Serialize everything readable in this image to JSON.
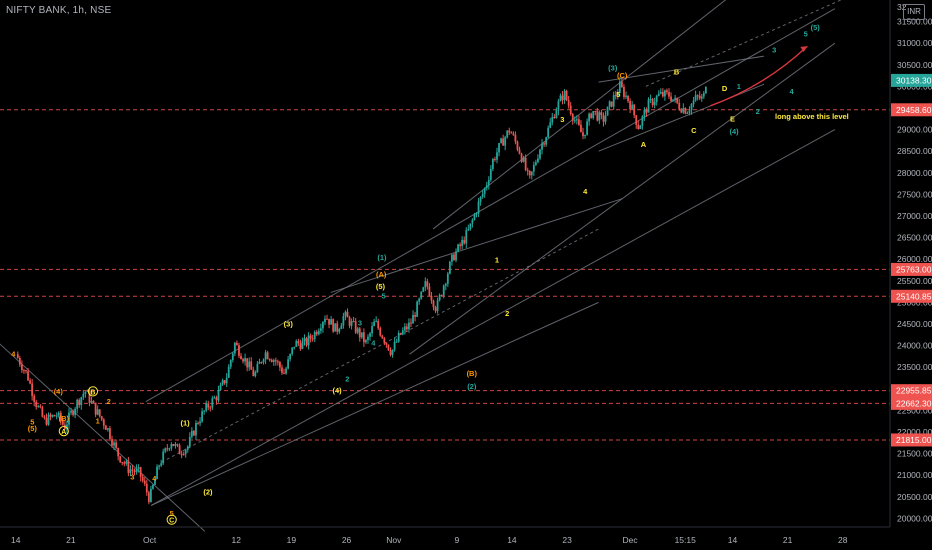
{
  "header": {
    "ticker": "NIFTY BANK, 1h, NSE",
    "currency": "INR"
  },
  "chart_data": {
    "type": "candlestick",
    "symbol": "NIFTY BANK",
    "interval": "1h",
    "exchange": "NSE",
    "ylim": [
      19800,
      32000
    ],
    "y_ticks": [
      20000,
      20500,
      21000,
      21500,
      22000,
      22500,
      23000,
      23500,
      24000,
      24500,
      25000,
      25500,
      26000,
      26500,
      27000,
      27500,
      28000,
      28500,
      29000,
      29500,
      30000,
      30500,
      31000,
      31500
    ],
    "y_top_label": "32",
    "x_ticks": [
      {
        "label": "14",
        "x": 0
      },
      {
        "label": "21",
        "x": 7
      },
      {
        "label": "Oct",
        "x": 17
      },
      {
        "label": "12",
        "x": 28
      },
      {
        "label": "19",
        "x": 35
      },
      {
        "label": "26",
        "x": 42
      },
      {
        "label": "Nov",
        "x": 48
      },
      {
        "label": "9",
        "x": 56
      },
      {
        "label": "14",
        "x": 63
      },
      {
        "label": "23",
        "x": 70
      },
      {
        "label": "Dec",
        "x": 78
      },
      {
        "label": "15:15",
        "x": 85
      },
      {
        "label": "14",
        "x": 91
      },
      {
        "label": "21",
        "x": 98
      },
      {
        "label": "28",
        "x": 105
      }
    ],
    "price_path": [
      [
        0,
        23800
      ],
      [
        1.5,
        23300
      ],
      [
        2.5,
        22700
      ],
      [
        3.6,
        22250
      ],
      [
        5.2,
        22400
      ],
      [
        6.2,
        22120
      ],
      [
        7.5,
        22600
      ],
      [
        8.8,
        22950
      ],
      [
        10,
        22550
      ],
      [
        11.6,
        22100
      ],
      [
        12.9,
        21500
      ],
      [
        14.3,
        21150
      ],
      [
        15.7,
        21050
      ],
      [
        17,
        20450
      ],
      [
        18.2,
        21250
      ],
      [
        19.7,
        21800
      ],
      [
        20.7,
        21550
      ],
      [
        21.8,
        21650
      ],
      [
        23.1,
        22250
      ],
      [
        24.4,
        22600
      ],
      [
        25.6,
        22850
      ],
      [
        26.8,
        23300
      ],
      [
        27.8,
        24050
      ],
      [
        29,
        23700
      ],
      [
        30.3,
        23300
      ],
      [
        31.6,
        23850
      ],
      [
        33,
        23650
      ],
      [
        34.1,
        23350
      ],
      [
        35.4,
        24050
      ],
      [
        36.8,
        24050
      ],
      [
        38,
        24300
      ],
      [
        39.3,
        24700
      ],
      [
        40.7,
        24350
      ],
      [
        41.7,
        24700
      ],
      [
        43.1,
        24400
      ],
      [
        44.5,
        24050
      ],
      [
        45.6,
        24550
      ],
      [
        46.8,
        24150
      ],
      [
        47.7,
        23850
      ],
      [
        48.8,
        24250
      ],
      [
        50.1,
        24500
      ],
      [
        51.2,
        25000
      ],
      [
        52.1,
        25450
      ],
      [
        53.4,
        24850
      ],
      [
        54.4,
        25450
      ],
      [
        55.5,
        26050
      ],
      [
        56.6,
        26350
      ],
      [
        57.6,
        26700
      ],
      [
        58.7,
        27250
      ],
      [
        59.7,
        27700
      ],
      [
        60.6,
        28300
      ],
      [
        61.7,
        28700
      ],
      [
        62.7,
        29000
      ],
      [
        64.1,
        28450
      ],
      [
        65.2,
        27800
      ],
      [
        66.5,
        28550
      ],
      [
        67.5,
        28950
      ],
      [
        68.5,
        29450
      ],
      [
        69.6,
        29850
      ],
      [
        70.9,
        29250
      ],
      [
        72,
        28850
      ],
      [
        73.2,
        29450
      ],
      [
        74.5,
        29200
      ],
      [
        75.7,
        29650
      ],
      [
        76.7,
        30000
      ],
      [
        77.9,
        29650
      ],
      [
        79.1,
        29050
      ],
      [
        80.2,
        29550
      ],
      [
        81.7,
        29800
      ],
      [
        83,
        29800
      ],
      [
        84.2,
        29550
      ],
      [
        85.2,
        29450
      ],
      [
        86.5,
        29750
      ],
      [
        87.3,
        29700
      ],
      [
        87.7,
        30200
      ]
    ],
    "last_price": 30138.3,
    "price_labels": [
      {
        "value": 30138.3,
        "text": "30138.30",
        "kind": "last"
      },
      {
        "value": 29458.6,
        "text": "29458.60",
        "kind": "level"
      },
      {
        "value": 25763.0,
        "text": "25763.00",
        "kind": "level"
      },
      {
        "value": 25140.85,
        "text": "25140.85",
        "kind": "level"
      },
      {
        "value": 22955.85,
        "text": "22955.85",
        "kind": "level"
      },
      {
        "value": 22662.3,
        "text": "22662.30",
        "kind": "level"
      },
      {
        "value": 21815.0,
        "text": "21815.00",
        "kind": "level"
      }
    ],
    "lines": [
      {
        "from": [
          -3,
          24200
        ],
        "to": [
          24,
          19700
        ]
      },
      {
        "from": [
          16.5,
          22700
        ],
        "to": [
          104,
          31800
        ]
      },
      {
        "from": [
          17.2,
          20300
        ],
        "to": [
          104,
          29000
        ]
      },
      {
        "from": [
          18.5,
          21300
        ],
        "to": [
          74,
          26700
        ],
        "dash": true
      },
      {
        "from": [
          17.2,
          20300
        ],
        "to": [
          74,
          25000
        ]
      },
      {
        "from": [
          53,
          26700
        ],
        "to": [
          95,
          32700
        ]
      },
      {
        "from": [
          50,
          23800
        ],
        "to": [
          104,
          31000
        ]
      },
      {
        "from": [
          74,
          28500
        ],
        "to": [
          95,
          30050
        ]
      },
      {
        "from": [
          74,
          30100
        ],
        "to": [
          95,
          30700
        ]
      },
      {
        "from": [
          80,
          30000
        ],
        "to": [
          106,
          32100
        ],
        "dash": true
      },
      {
        "from": [
          40,
          25230
        ],
        "to": [
          77,
          27400
        ]
      }
    ],
    "projection": {
      "from": [
        88.2,
        29550
      ],
      "to": [
        100.5,
        30930
      ],
      "color": "#d9363e"
    },
    "annotations": [
      {
        "text": "4",
        "x": -0.3,
        "y": 23750,
        "color": "#ff9800"
      },
      {
        "text": "5",
        "x": 2.1,
        "y": 22170,
        "color": "#ff9800"
      },
      {
        "text": "(5)",
        "x": 2.1,
        "y": 22020,
        "color": "#ff9800"
      },
      {
        "text": "(4)",
        "x": 5.4,
        "y": 22880,
        "color": "#ff9800"
      },
      {
        "text": "(B)",
        "x": 6.1,
        "y": 22250,
        "color": "#ff9800"
      },
      {
        "text": "A",
        "x": 6.1,
        "y": 21950,
        "color": "#ffeb3b",
        "circled": true
      },
      {
        "text": "B",
        "x": 9.8,
        "y": 22870,
        "color": "#ffeb3b",
        "circled": true
      },
      {
        "text": "2",
        "x": 11.8,
        "y": 22650,
        "color": "#ff9800"
      },
      {
        "text": "1",
        "x": 10.4,
        "y": 22200,
        "color": "#ff9800"
      },
      {
        "text": "3",
        "x": 14.8,
        "y": 20900,
        "color": "#ff9800"
      },
      {
        "text": "4",
        "x": 17.6,
        "y": 20870,
        "color": "#ff9800"
      },
      {
        "text": "5",
        "x": 19.8,
        "y": 20060,
        "color": "#ff9800"
      },
      {
        "text": "C",
        "x": 19.8,
        "y": 19900,
        "color": "#ffeb3b",
        "circled": true
      },
      {
        "text": "(1)",
        "x": 21.5,
        "y": 22150,
        "color": "#ffeb3b"
      },
      {
        "text": "(2)",
        "x": 24.4,
        "y": 20550,
        "color": "#ffeb3b"
      },
      {
        "text": "(3)",
        "x": 34.6,
        "y": 24440,
        "color": "#ffeb3b"
      },
      {
        "text": "(4)",
        "x": 40.8,
        "y": 22900,
        "color": "#ffeb3b"
      },
      {
        "text": "2",
        "x": 42.1,
        "y": 23170,
        "color": "#26a69a"
      },
      {
        "text": "3",
        "x": 43.7,
        "y": 24470,
        "color": "#26a69a"
      },
      {
        "text": "4",
        "x": 45.4,
        "y": 24000,
        "color": "#26a69a"
      },
      {
        "text": "(1)",
        "x": 46.5,
        "y": 25980,
        "color": "#26a69a"
      },
      {
        "text": "(A)",
        "x": 46.4,
        "y": 25590,
        "color": "#ff9800"
      },
      {
        "text": "(5)",
        "x": 46.3,
        "y": 25310,
        "color": "#ffeb3b"
      },
      {
        "text": "5",
        "x": 46.7,
        "y": 25090,
        "color": "#26a69a"
      },
      {
        "text": "(B)",
        "x": 57.9,
        "y": 23300,
        "color": "#ff9800"
      },
      {
        "text": "(2)",
        "x": 57.9,
        "y": 23000,
        "color": "#26a69a"
      },
      {
        "text": "1",
        "x": 61.1,
        "y": 25920,
        "color": "#ffeb3b"
      },
      {
        "text": "2",
        "x": 62.4,
        "y": 24690,
        "color": "#ffeb3b"
      },
      {
        "text": "3",
        "x": 69.4,
        "y": 29180,
        "color": "#ffeb3b"
      },
      {
        "text": "4",
        "x": 72.3,
        "y": 27510,
        "color": "#ffeb3b"
      },
      {
        "text": "(3)",
        "x": 75.8,
        "y": 30370,
        "color": "#26a69a"
      },
      {
        "text": "(C)",
        "x": 77,
        "y": 30190,
        "color": "#ff9800"
      },
      {
        "text": "5",
        "x": 76.5,
        "y": 29750,
        "color": "#ffeb3b"
      },
      {
        "text": "A",
        "x": 79.7,
        "y": 28600,
        "color": "#ffeb3b"
      },
      {
        "text": "B",
        "x": 83.9,
        "y": 30270,
        "color": "#ffeb3b"
      },
      {
        "text": "C",
        "x": 86.1,
        "y": 28920,
        "color": "#ffeb3b"
      },
      {
        "text": "D",
        "x": 90,
        "y": 29890,
        "color": "#ffeb3b"
      },
      {
        "text": "1",
        "x": 91.8,
        "y": 29940,
        "color": "#26a69a"
      },
      {
        "text": "E",
        "x": 91,
        "y": 29190,
        "color": "#ffeb3b"
      },
      {
        "text": "(4)",
        "x": 91.2,
        "y": 28900,
        "color": "#26a69a"
      },
      {
        "text": "2",
        "x": 94.2,
        "y": 29360,
        "color": "#26a69a"
      },
      {
        "text": "3",
        "x": 96.3,
        "y": 30780,
        "color": "#26a69a"
      },
      {
        "text": "4",
        "x": 98.5,
        "y": 29820,
        "color": "#26a69a"
      },
      {
        "text": "5",
        "x": 100.3,
        "y": 31150,
        "color": "#26a69a"
      },
      {
        "text": "(5)",
        "x": 101.5,
        "y": 31310,
        "color": "#26a69a"
      },
      {
        "text": "long above this level",
        "x": 96.4,
        "y": 29240,
        "color": "#ffeb3b",
        "anchor": "start"
      }
    ],
    "grid": false,
    "colors": {
      "up": "#26a69a",
      "down": "#ef5350",
      "level": "#ef5350",
      "trendline": "#787b86",
      "axis_text": "#b2b5be",
      "last_price_bg": "#26a69a"
    }
  }
}
